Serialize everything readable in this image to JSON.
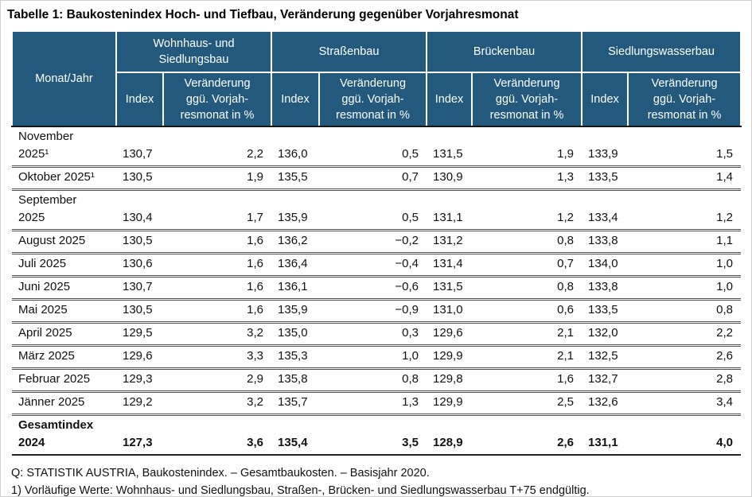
{
  "title": "Tabelle 1: Baukostenindex Hoch- und Tiefbau, Veränderung gegenüber Vorjahresmonat",
  "colors": {
    "header_bg": "#23597C",
    "header_text": "#ffffff"
  },
  "table": {
    "corner_header": "Monat/Jahr",
    "groups": [
      {
        "label": "Wohnhaus- und\nSiedlungsbau"
      },
      {
        "label": "Straßenbau"
      },
      {
        "label": "Brückenbau"
      },
      {
        "label": "Siedlungswasserbau"
      }
    ],
    "sub_headers": {
      "index": "Index",
      "change": "Veränderung\nggü. Vorjah-\nresmonat in %"
    },
    "rows": [
      {
        "month": "November\n2025¹",
        "values": [
          "130,7",
          "2,2",
          "136,0",
          "0,5",
          "131,5",
          "1,9",
          "133,9",
          "1,5"
        ],
        "total": false
      },
      {
        "month": "Oktober 2025¹",
        "values": [
          "130,5",
          "1,9",
          "135,5",
          "0,7",
          "130,9",
          "1,3",
          "133,5",
          "1,4"
        ],
        "total": false
      },
      {
        "month": "September\n2025",
        "values": [
          "130,4",
          "1,7",
          "135,9",
          "0,5",
          "131,1",
          "1,2",
          "133,4",
          "1,2"
        ],
        "total": false
      },
      {
        "month": "August 2025",
        "values": [
          "130,5",
          "1,6",
          "136,2",
          "−0,2",
          "131,2",
          "0,8",
          "133,8",
          "1,1"
        ],
        "total": false
      },
      {
        "month": "Juli 2025",
        "values": [
          "130,6",
          "1,6",
          "136,4",
          "−0,4",
          "131,4",
          "0,7",
          "134,0",
          "1,0"
        ],
        "total": false
      },
      {
        "month": "Juni 2025",
        "values": [
          "130,7",
          "1,6",
          "136,1",
          "−0,6",
          "131,5",
          "0,8",
          "133,8",
          "1,0"
        ],
        "total": false
      },
      {
        "month": "Mai 2025",
        "values": [
          "130,5",
          "1,6",
          "135,9",
          "−0,9",
          "131,0",
          "0,6",
          "133,5",
          "0,8"
        ],
        "total": false
      },
      {
        "month": "April 2025",
        "values": [
          "129,5",
          "3,2",
          "135,0",
          "0,3",
          "129,6",
          "2,1",
          "132,0",
          "2,2"
        ],
        "total": false
      },
      {
        "month": "März 2025",
        "values": [
          "129,6",
          "3,3",
          "135,3",
          "1,0",
          "129,9",
          "2,1",
          "132,5",
          "2,6"
        ],
        "total": false
      },
      {
        "month": "Februar 2025",
        "values": [
          "129,3",
          "2,9",
          "135,8",
          "0,8",
          "129,8",
          "1,6",
          "132,7",
          "2,8"
        ],
        "total": false
      },
      {
        "month": "Jänner 2025",
        "values": [
          "129,2",
          "3,2",
          "135,7",
          "1,3",
          "129,9",
          "2,5",
          "132,6",
          "3,4"
        ],
        "total": false
      },
      {
        "month": "Gesamtindex\n2024",
        "values": [
          "127,3",
          "3,6",
          "135,4",
          "3,5",
          "128,9",
          "2,6",
          "131,1",
          "4,0"
        ],
        "total": true
      }
    ]
  },
  "footer": {
    "source": "Q: STATISTIK AUSTRIA, Baukostenindex. – Gesamtbaukosten. – Basisjahr 2020.",
    "footnote": "1) Vorläufige Werte: Wohnhaus- und Siedlungsbau, Straßen-, Brücken- und Siedlungswasserbau T+75 endgültig."
  }
}
